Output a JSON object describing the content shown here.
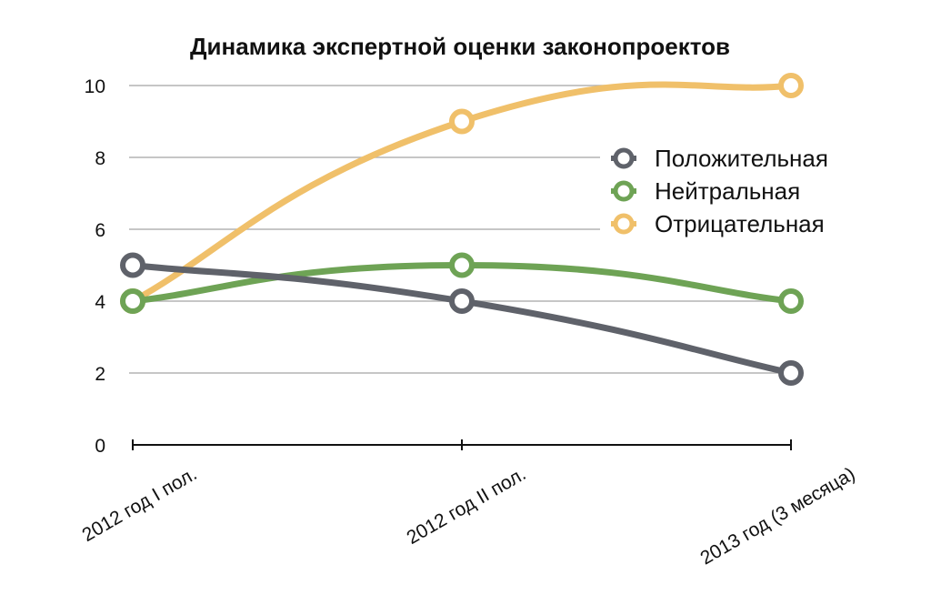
{
  "chart_data": {
    "type": "line",
    "title": "Динамика экспертной оценки законопроектов",
    "categories": [
      "2012 год I пол.",
      "2012 год II пол.",
      "2013 год (3 месяца)"
    ],
    "ylim": [
      0,
      10
    ],
    "yticks": [
      "0",
      "2",
      "4",
      "6",
      "8",
      "10"
    ],
    "grid": true,
    "legend_position": "right",
    "series": [
      {
        "name": "Положительная",
        "values": [
          5,
          4,
          2
        ],
        "color": "#5f626a"
      },
      {
        "name": "Нейтральная",
        "values": [
          4,
          5,
          4
        ],
        "color": "#6ea355"
      },
      {
        "name": "Отрицательная",
        "values": [
          4,
          9,
          10
        ],
        "color": "#f0c06a"
      }
    ]
  }
}
